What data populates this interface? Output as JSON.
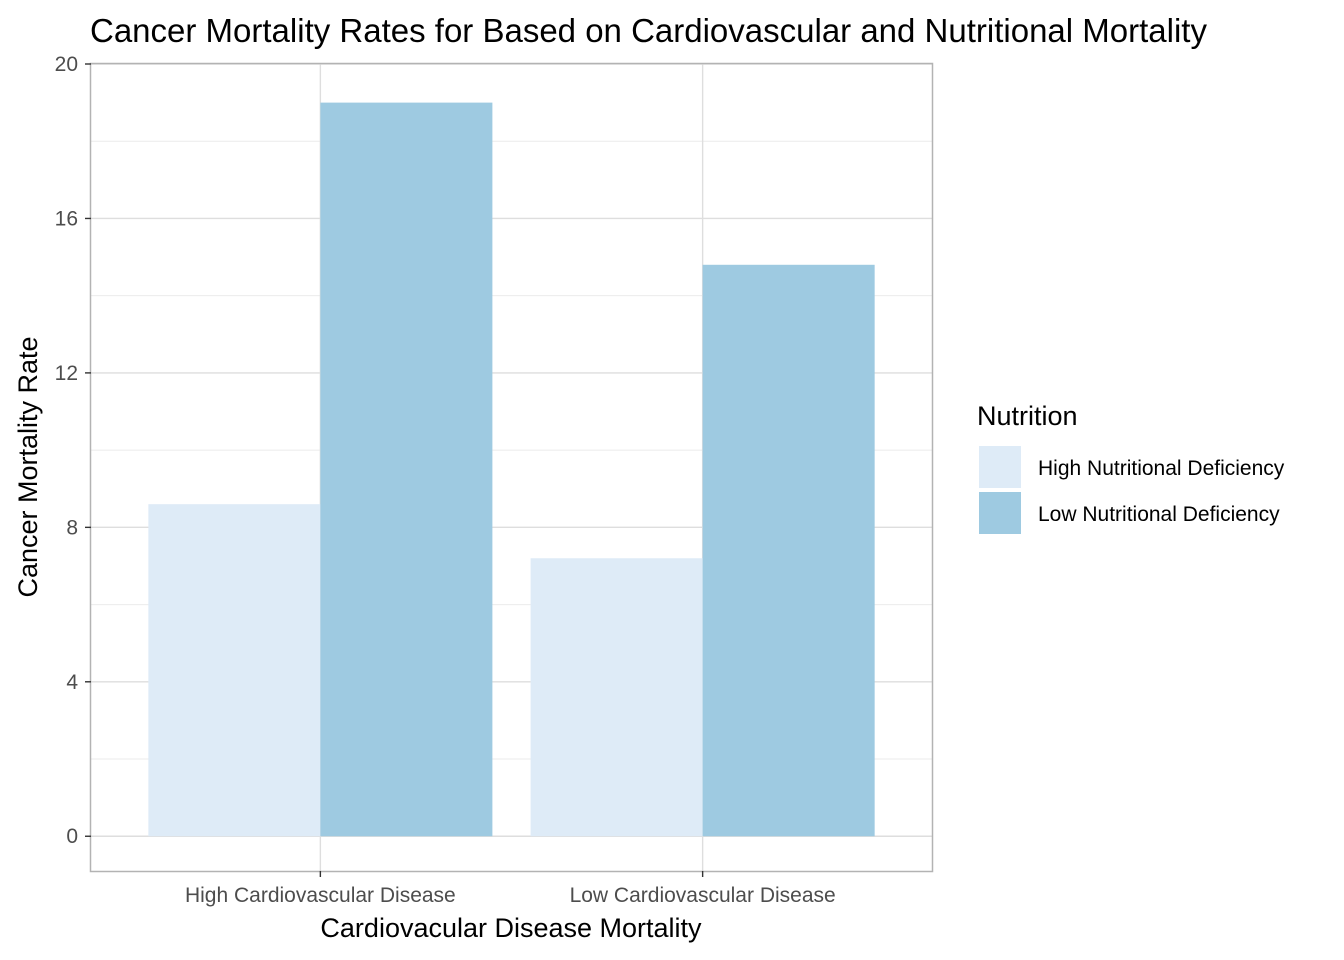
{
  "chart_data": {
    "type": "bar",
    "title": "Cancer Mortality Rates for Based on Cardiovascular and Nutritional Mortality",
    "xlabel": "Cardiovacular Disease Mortality",
    "ylabel": "Cancer Mortality Rate",
    "categories": [
      "High Cardiovascular Disease",
      "Low Cardiovascular Disease"
    ],
    "series": [
      {
        "name": "High Nutritional Deficiency",
        "values": [
          8.6,
          7.2
        ],
        "color": "#deebf7"
      },
      {
        "name": "Low Nutritional Deficiency",
        "values": [
          19.0,
          14.8
        ],
        "color": "#9ecae1"
      }
    ],
    "ylim": [
      -0.9,
      20
    ],
    "yticks": [
      0,
      4,
      8,
      12,
      16,
      20
    ],
    "grid": true,
    "legend": {
      "title": "Nutrition",
      "position": "right"
    }
  }
}
